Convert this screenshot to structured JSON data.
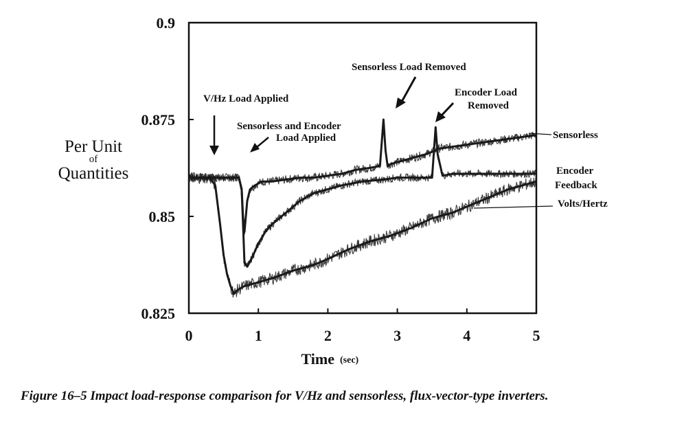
{
  "chart_data": {
    "type": "line",
    "title": "",
    "xlabel": "Time",
    "xlabel_unit": "(sec)",
    "ylabel": [
      "Per Unit",
      "of",
      "Quantities"
    ],
    "xlim": [
      0,
      5
    ],
    "ylim": [
      0.825,
      0.9
    ],
    "x_ticks": [
      "0",
      "1",
      "2",
      "3",
      "4",
      "5"
    ],
    "y_ticks": [
      "0.9",
      "0.875",
      "0.85",
      "0.825"
    ],
    "grid": false,
    "series": [
      {
        "name": "Sensorless",
        "color": "#1a1a1a",
        "x": [
          0,
          0.3,
          0.6,
          0.72,
          0.76,
          0.78,
          0.8,
          0.82,
          0.84,
          0.88,
          0.95,
          1.05,
          1.2,
          1.4,
          1.6,
          1.8,
          2.0,
          2.2,
          2.4,
          2.6,
          2.75,
          2.8,
          2.83,
          2.86,
          2.9,
          3.0,
          3.2,
          3.4,
          3.55,
          3.6,
          3.8,
          4.0,
          4.2,
          4.4,
          4.6,
          4.8,
          5.0
        ],
        "y": [
          0.86,
          0.86,
          0.86,
          0.86,
          0.857,
          0.85,
          0.846,
          0.85,
          0.854,
          0.857,
          0.858,
          0.859,
          0.859,
          0.8595,
          0.86,
          0.86,
          0.8605,
          0.861,
          0.862,
          0.8625,
          0.863,
          0.875,
          0.867,
          0.863,
          0.8635,
          0.864,
          0.865,
          0.866,
          0.867,
          0.8675,
          0.868,
          0.8685,
          0.869,
          0.8695,
          0.87,
          0.8705,
          0.871
        ]
      },
      {
        "name": "Encoder Feedback",
        "color": "#1a1a1a",
        "x": [
          0,
          0.3,
          0.6,
          0.7,
          0.72,
          0.76,
          0.78,
          0.8,
          0.84,
          0.9,
          1.0,
          1.1,
          1.2,
          1.4,
          1.6,
          1.8,
          2.0,
          2.2,
          2.5,
          2.8,
          3.0,
          3.3,
          3.5,
          3.55,
          3.58,
          3.65,
          3.8,
          4.0,
          4.3,
          4.6,
          5.0
        ],
        "y": [
          0.86,
          0.86,
          0.86,
          0.86,
          0.86,
          0.857,
          0.848,
          0.838,
          0.837,
          0.839,
          0.843,
          0.846,
          0.848,
          0.851,
          0.854,
          0.856,
          0.857,
          0.858,
          0.859,
          0.8595,
          0.86,
          0.86,
          0.86,
          0.873,
          0.866,
          0.8605,
          0.861,
          0.861,
          0.861,
          0.861,
          0.861
        ]
      },
      {
        "name": "Volts/Hertz",
        "color": "#1a1a1a",
        "x": [
          0,
          0.3,
          0.38,
          0.45,
          0.5,
          0.55,
          0.6,
          0.65,
          0.7,
          0.8,
          1.0,
          1.2,
          1.5,
          1.8,
          2.0,
          2.3,
          2.6,
          2.9,
          3.2,
          3.5,
          3.8,
          4.0,
          4.2,
          4.4,
          4.6,
          4.8,
          5.0
        ],
        "y": [
          0.86,
          0.86,
          0.858,
          0.848,
          0.84,
          0.835,
          0.832,
          0.83,
          0.831,
          0.832,
          0.833,
          0.834,
          0.836,
          0.8375,
          0.839,
          0.8415,
          0.8435,
          0.845,
          0.847,
          0.8495,
          0.851,
          0.8525,
          0.854,
          0.8555,
          0.857,
          0.858,
          0.859
        ]
      }
    ],
    "annotations": [
      {
        "lines": [
          "V/Hz Load Applied"
        ],
        "x": 0.38
      },
      {
        "lines": [
          "Sensorless  and  Encoder",
          "Load Applied"
        ],
        "x": 0.9
      },
      {
        "lines": [
          "Sensorless Load Removed"
        ],
        "x": 2.95
      },
      {
        "lines": [
          "Encoder Load",
          "Removed"
        ],
        "x": 3.6
      }
    ]
  },
  "caption": "Figure 16–5 Impact load-response comparison for V/Hz and sensorless, flux-vector-type inverters."
}
